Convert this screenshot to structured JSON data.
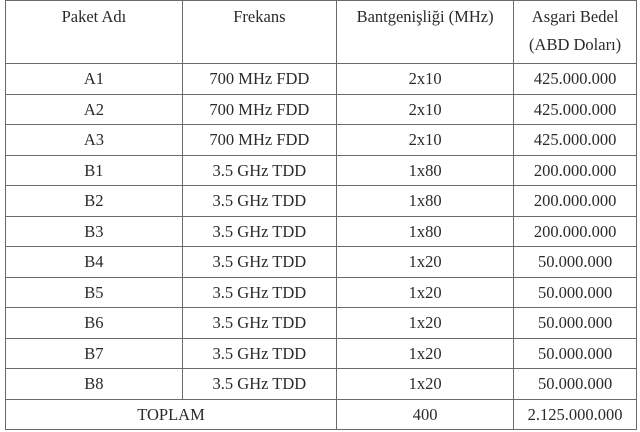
{
  "table": {
    "headers": [
      "Paket Adı",
      "Frekans",
      "Bantgenişliği (MHz)",
      "Asgari Bedel (ABD Doları)"
    ],
    "header_lines": {
      "col4_line1": "Asgari Bedel",
      "col4_line2": "(ABD Doları)"
    },
    "rows": [
      [
        "A1",
        "700 MHz FDD",
        "2x10",
        "425.000.000"
      ],
      [
        "A2",
        "700 MHz FDD",
        "2x10",
        "425.000.000"
      ],
      [
        "A3",
        "700 MHz FDD",
        "2x10",
        "425.000.000"
      ],
      [
        "B1",
        "3.5 GHz TDD",
        "1x80",
        "200.000.000"
      ],
      [
        "B2",
        "3.5 GHz TDD",
        "1x80",
        "200.000.000"
      ],
      [
        "B3",
        "3.5 GHz TDD",
        "1x80",
        "200.000.000"
      ],
      [
        "B4",
        "3.5 GHz TDD",
        "1x20",
        "50.000.000"
      ],
      [
        "B5",
        "3.5 GHz TDD",
        "1x20",
        "50.000.000"
      ],
      [
        "B6",
        "3.5 GHz TDD",
        "1x20",
        "50.000.000"
      ],
      [
        "B7",
        "3.5 GHz TDD",
        "1x20",
        "50.000.000"
      ],
      [
        "B8",
        "3.5 GHz TDD",
        "1x20",
        "50.000.000"
      ]
    ],
    "total": {
      "label": "TOPLAM",
      "bandwidth": "400",
      "amount": "2.125.000.000"
    }
  }
}
